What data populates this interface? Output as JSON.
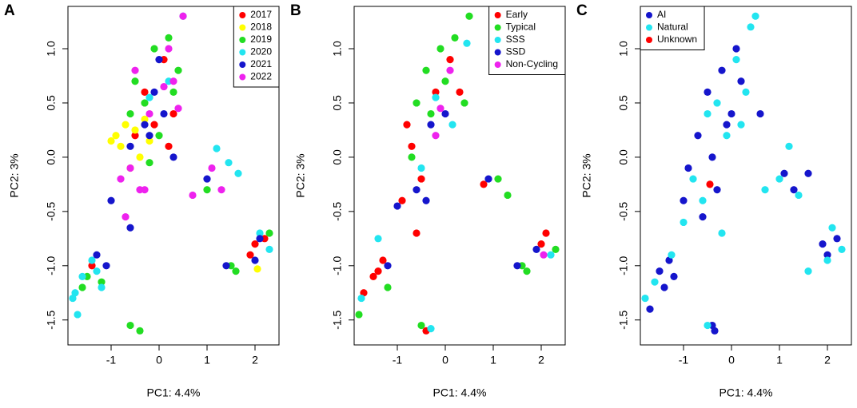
{
  "chart_data": [
    {
      "type": "scatter",
      "title": "A",
      "x_label": "PC1: 4.4%",
      "y_label": "PC2: 3%",
      "xlim": [
        -1.9,
        2.5
      ],
      "ylim": [
        -1.73,
        1.39
      ],
      "xticks": [
        -1,
        0,
        1,
        2
      ],
      "yticks": [
        {
          "value": -1.5,
          "label": "-1.5"
        },
        {
          "value": -1.0,
          "label": "-1.0"
        },
        -0.5,
        {
          "value": 0.0,
          "label": "0.0"
        },
        0.5,
        {
          "value": 1.0,
          "label": "1.0"
        }
      ],
      "legend": "top-right",
      "series": [
        {
          "name": "2017",
          "color": "#ff0000",
          "x": [
            -0.3,
            0.1,
            -0.5,
            0.3,
            2.0,
            2.2,
            -1.4,
            0.2,
            -0.1,
            1.9
          ],
          "values": [
            0.6,
            0.9,
            0.2,
            0.4,
            -0.8,
            -0.75,
            -1.0,
            0.1,
            0.3,
            -0.9
          ]
        },
        {
          "name": "2018",
          "color": "#ffff00",
          "x": [
            -0.7,
            -0.9,
            -0.6,
            -0.4,
            -0.8,
            -0.3,
            -0.5,
            -0.2,
            2.05,
            -1.0
          ],
          "values": [
            0.3,
            0.2,
            -0.1,
            0.0,
            0.1,
            0.35,
            0.25,
            0.15,
            -1.03,
            0.15
          ]
        },
        {
          "name": "2019",
          "color": "#22dd22",
          "x": [
            -0.5,
            -0.1,
            0.2,
            0.4,
            -0.3,
            0.0,
            -0.6,
            1.0,
            1.6,
            1.5,
            2.3,
            -1.5,
            -1.2,
            -0.6,
            -0.4,
            0.3,
            -0.2,
            -1.6
          ],
          "values": [
            0.7,
            1.0,
            1.1,
            0.8,
            0.5,
            0.2,
            0.4,
            -0.3,
            -1.05,
            -1.0,
            -0.7,
            -1.1,
            -1.15,
            -1.55,
            -1.6,
            0.6,
            -0.05,
            -1.2
          ]
        },
        {
          "name": "2020",
          "color": "#22e5f0",
          "x": [
            -1.75,
            -1.7,
            -1.6,
            -1.4,
            -1.3,
            -1.2,
            0.5,
            0.2,
            1.2,
            1.45,
            2.1,
            2.3,
            -0.2,
            -1.8,
            1.65
          ],
          "values": [
            -1.25,
            -1.45,
            -1.1,
            -0.95,
            -1.05,
            -1.2,
            1.3,
            0.7,
            0.08,
            -0.05,
            -0.7,
            -0.85,
            0.55,
            -1.3,
            -0.15
          ]
        },
        {
          "name": "2021",
          "color": "#1515cc",
          "x": [
            -0.3,
            -0.1,
            0.1,
            -0.6,
            -1.0,
            -0.6,
            0.0,
            1.4,
            2.0,
            2.1,
            1.0,
            -1.3,
            -1.1,
            -0.2,
            0.3
          ],
          "values": [
            0.3,
            0.6,
            0.4,
            0.1,
            -0.4,
            -0.65,
            0.9,
            -1.0,
            -0.95,
            -0.75,
            -0.2,
            -0.9,
            -1.0,
            0.2,
            0.0
          ]
        },
        {
          "name": "2022",
          "color": "#ee22ee",
          "x": [
            -0.5,
            0.2,
            0.3,
            0.5,
            -0.3,
            -0.7,
            -0.4,
            0.1,
            0.7,
            -0.2,
            1.1,
            1.3,
            -0.6,
            0.4,
            -0.8
          ],
          "values": [
            0.8,
            1.0,
            0.7,
            1.3,
            -0.3,
            -0.55,
            -0.3,
            0.65,
            -0.35,
            0.4,
            -0.1,
            -0.3,
            -0.1,
            0.45,
            -0.2
          ]
        }
      ]
    },
    {
      "type": "scatter",
      "title": "B",
      "x_label": "PC1: 4.4%",
      "y_label": "PC2: 3%",
      "xlim": [
        -1.9,
        2.5
      ],
      "ylim": [
        -1.73,
        1.39
      ],
      "xticks": [
        -1,
        0,
        1,
        2
      ],
      "yticks": [
        {
          "value": -1.5,
          "label": "-1.5"
        },
        {
          "value": -1.0,
          "label": "-1.0"
        },
        -0.5,
        {
          "value": 0.0,
          "label": "0.0"
        },
        0.5,
        {
          "value": 1.0,
          "label": "1.0"
        }
      ],
      "legend": "top-right",
      "series": [
        {
          "name": "Early",
          "color": "#ff0000",
          "x": [
            -0.8,
            -0.7,
            -0.5,
            -0.2,
            0.1,
            -0.9,
            -0.6,
            -1.5,
            -1.3,
            -1.7,
            2.0,
            2.1,
            0.8,
            -0.4,
            0.3,
            -1.4
          ],
          "values": [
            0.3,
            0.1,
            -0.2,
            0.6,
            0.9,
            -0.4,
            -0.7,
            -1.1,
            -0.95,
            -1.25,
            -0.8,
            -0.7,
            -0.25,
            -1.6,
            0.6,
            -1.05
          ]
        },
        {
          "name": "Typical",
          "color": "#22dd22",
          "x": [
            -0.4,
            -0.1,
            0.2,
            0.5,
            -0.3,
            0.0,
            -0.6,
            1.1,
            1.3,
            1.6,
            2.3,
            -1.2,
            -0.5,
            0.4,
            -1.8,
            -0.7,
            1.7
          ],
          "values": [
            0.8,
            1.0,
            1.1,
            1.3,
            0.4,
            0.7,
            0.5,
            -0.2,
            -0.35,
            -1.0,
            -0.85,
            -1.2,
            -1.55,
            0.5,
            -1.45,
            0.0,
            -1.05
          ]
        },
        {
          "name": "SSS",
          "color": "#22e5f0",
          "x": [
            -1.75,
            -1.4,
            0.45,
            0.15,
            -0.2,
            -0.5,
            2.2,
            -0.3
          ],
          "values": [
            -1.3,
            -0.75,
            1.05,
            0.3,
            0.55,
            -0.1,
            -0.9,
            -1.58
          ]
        },
        {
          "name": "SSD",
          "color": "#1515cc",
          "x": [
            -0.3,
            0.0,
            -0.6,
            -1.0,
            1.5,
            1.9,
            -0.4,
            0.9,
            -1.2
          ],
          "values": [
            0.3,
            0.4,
            -0.3,
            -0.45,
            -1.0,
            -0.85,
            -0.4,
            -0.2,
            -1.0
          ]
        },
        {
          "name": "Non-Cycling",
          "color": "#ee22ee",
          "x": [
            0.1,
            -0.2,
            2.05,
            -0.1
          ],
          "values": [
            0.8,
            0.2,
            -0.9,
            0.45
          ]
        }
      ]
    },
    {
      "type": "scatter",
      "title": "C",
      "x_label": "PC1: 4.4%",
      "y_label": "PC2: 3%",
      "xlim": [
        -1.9,
        2.5
      ],
      "ylim": [
        -1.73,
        1.39
      ],
      "xticks": [
        -1,
        0,
        1,
        2
      ],
      "yticks": [
        {
          "value": -1.5,
          "label": "-1.5"
        },
        {
          "value": -1.0,
          "label": "-1.0"
        },
        -0.5,
        {
          "value": 0.0,
          "label": "0.0"
        },
        0.5,
        {
          "value": 1.0,
          "label": "1.0"
        }
      ],
      "legend": "top-left",
      "series": [
        {
          "name": "AI",
          "color": "#1515cc",
          "x": [
            -0.5,
            -0.2,
            0.0,
            0.2,
            -0.7,
            -0.4,
            -0.9,
            -1.0,
            -0.3,
            0.1,
            1.1,
            1.3,
            1.6,
            1.9,
            2.0,
            2.2,
            -1.5,
            -1.3,
            -1.2,
            -1.4,
            -1.7,
            -0.35,
            -0.4,
            0.6,
            -0.6,
            -0.1
          ],
          "values": [
            0.6,
            0.8,
            0.4,
            0.7,
            0.2,
            0.0,
            -0.1,
            -0.4,
            -0.3,
            1.0,
            -0.15,
            -0.3,
            -0.15,
            -0.8,
            -0.9,
            -0.75,
            -1.05,
            -0.95,
            -1.1,
            -1.2,
            -1.4,
            -1.6,
            -1.55,
            0.4,
            -0.55,
            0.3
          ]
        },
        {
          "name": "Natural",
          "color": "#22e5f0",
          "x": [
            -0.3,
            0.1,
            0.4,
            0.5,
            0.2,
            -0.1,
            -0.5,
            -0.8,
            -0.6,
            -1.0,
            1.0,
            1.2,
            1.4,
            1.6,
            2.1,
            2.3,
            -1.6,
            -1.8,
            -1.25,
            -0.5,
            0.3,
            0.7,
            -0.2,
            2.0
          ],
          "values": [
            0.5,
            0.9,
            1.2,
            1.3,
            0.3,
            0.2,
            0.4,
            -0.2,
            -0.4,
            -0.6,
            -0.2,
            0.1,
            -0.35,
            -1.05,
            -0.65,
            -0.85,
            -1.15,
            -1.3,
            -0.9,
            -1.55,
            0.6,
            -0.3,
            -0.7,
            -0.95
          ]
        },
        {
          "name": "Unknown",
          "color": "#ff0000",
          "x": [
            -0.45
          ],
          "values": [
            -0.25
          ]
        }
      ]
    }
  ]
}
